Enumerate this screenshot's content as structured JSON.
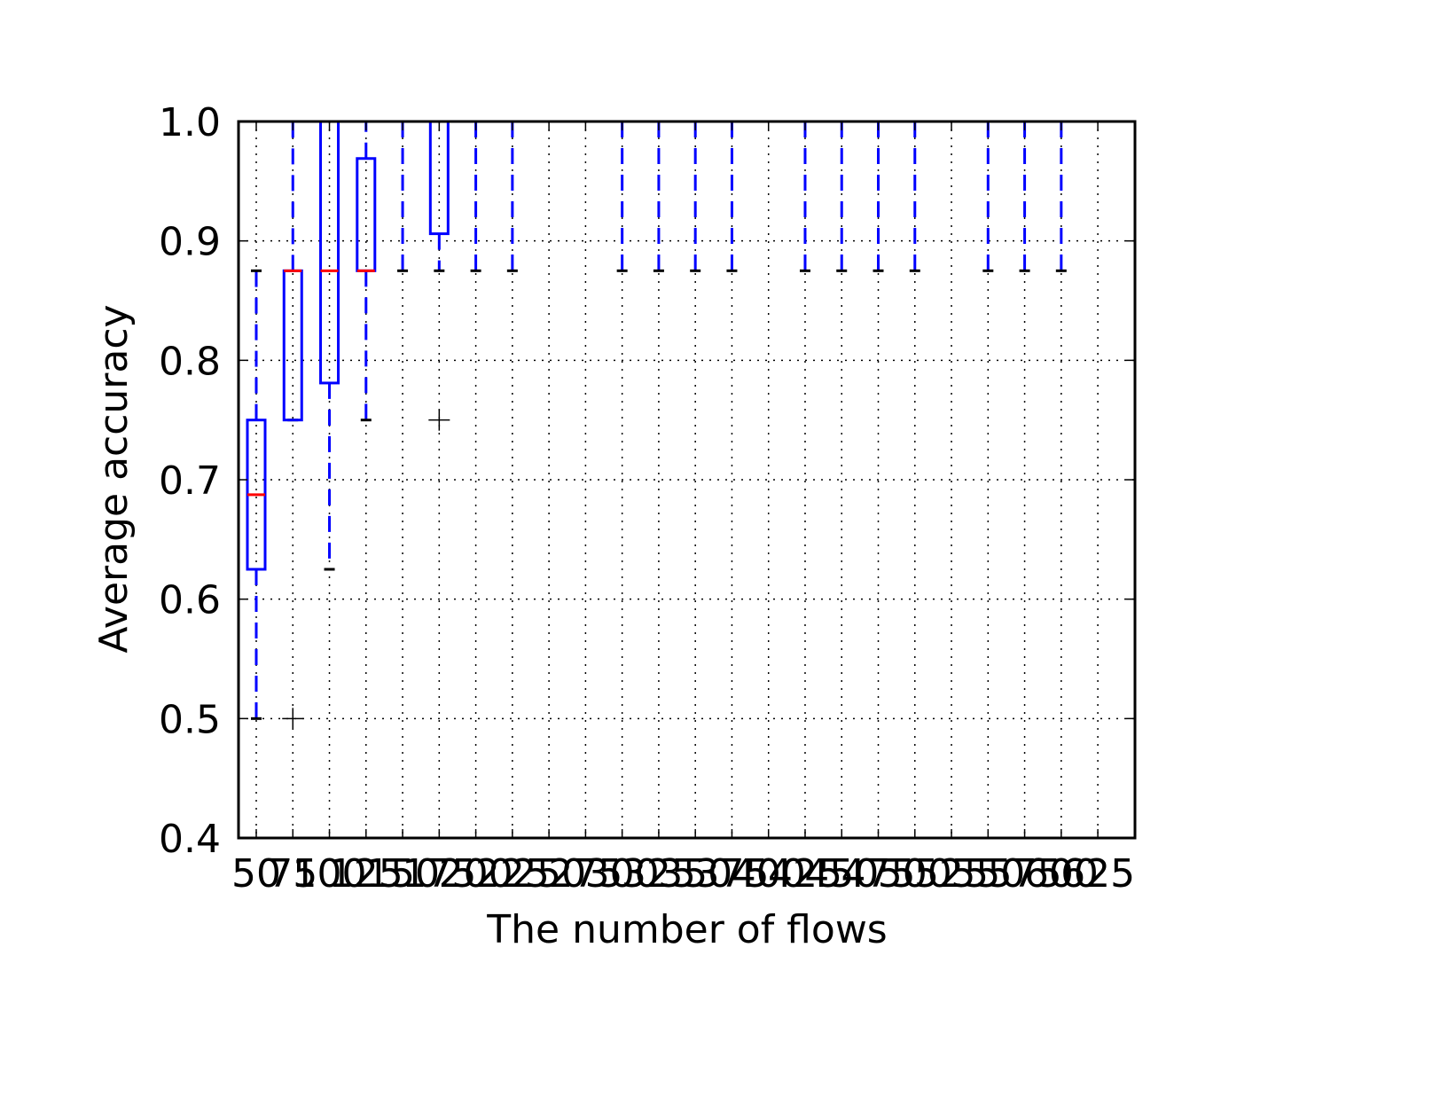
{
  "chart_data": {
    "type": "box",
    "title": "",
    "xlabel": "The number of flows",
    "ylabel": "Average accuracy",
    "ylim": [
      0.4,
      1.0
    ],
    "y_ticks": [
      "0.4",
      "0.5",
      "0.6",
      "0.7",
      "0.8",
      "0.9",
      "1.0"
    ],
    "grid": true,
    "grid_style": "dotted",
    "colors": {
      "box": "#0000ff",
      "median": "#ff0000",
      "caps": "#000000",
      "outlier": "#000000"
    },
    "categories": [
      "50",
      "75",
      "100",
      "125",
      "150",
      "175",
      "200",
      "225",
      "250",
      "275",
      "300",
      "325",
      "350",
      "375",
      "400",
      "425",
      "450",
      "475",
      "500",
      "525",
      "550",
      "575",
      "600",
      "625"
    ],
    "boxes": [
      {
        "x": "50",
        "whislo": 0.5,
        "q1": 0.625,
        "med": 0.6875,
        "q3": 0.75,
        "whishi": 0.875,
        "fliers": []
      },
      {
        "x": "75",
        "whislo": 0.75,
        "q1": 0.75,
        "med": 0.875,
        "q3": 0.875,
        "whishi": 1.0,
        "fliers": [
          0.5
        ]
      },
      {
        "x": "100",
        "whislo": 0.625,
        "q1": 0.781,
        "med": 0.875,
        "q3": 1.0,
        "whishi": 1.0,
        "fliers": []
      },
      {
        "x": "125",
        "whislo": 0.75,
        "q1": 0.875,
        "med": 0.875,
        "q3": 0.969,
        "whishi": 1.0,
        "fliers": []
      },
      {
        "x": "150",
        "whislo": 0.875,
        "q1": 1.0,
        "med": 1.0,
        "q3": 1.0,
        "whishi": 1.0,
        "fliers": []
      },
      {
        "x": "175",
        "whislo": 0.875,
        "q1": 0.906,
        "med": 1.0,
        "q3": 1.0,
        "whishi": 1.0,
        "fliers": [
          0.75
        ]
      },
      {
        "x": "200",
        "whislo": 0.875,
        "q1": 1.0,
        "med": 1.0,
        "q3": 1.0,
        "whishi": 1.0,
        "fliers": []
      },
      {
        "x": "225",
        "whislo": 0.875,
        "q1": 1.0,
        "med": 1.0,
        "q3": 1.0,
        "whishi": 1.0,
        "fliers": []
      },
      {
        "x": "250",
        "whislo": 1.0,
        "q1": 1.0,
        "med": 1.0,
        "q3": 1.0,
        "whishi": 1.0,
        "fliers": []
      },
      {
        "x": "275",
        "whislo": 1.0,
        "q1": 1.0,
        "med": 1.0,
        "q3": 1.0,
        "whishi": 1.0,
        "fliers": []
      },
      {
        "x": "300",
        "whislo": 0.875,
        "q1": 1.0,
        "med": 1.0,
        "q3": 1.0,
        "whishi": 1.0,
        "fliers": []
      },
      {
        "x": "325",
        "whislo": 0.875,
        "q1": 1.0,
        "med": 1.0,
        "q3": 1.0,
        "whishi": 1.0,
        "fliers": []
      },
      {
        "x": "350",
        "whislo": 0.875,
        "q1": 1.0,
        "med": 1.0,
        "q3": 1.0,
        "whishi": 1.0,
        "fliers": []
      },
      {
        "x": "375",
        "whislo": 0.875,
        "q1": 1.0,
        "med": 1.0,
        "q3": 1.0,
        "whishi": 1.0,
        "fliers": []
      },
      {
        "x": "400",
        "whislo": 1.0,
        "q1": 1.0,
        "med": 1.0,
        "q3": 1.0,
        "whishi": 1.0,
        "fliers": []
      },
      {
        "x": "425",
        "whislo": 0.875,
        "q1": 1.0,
        "med": 1.0,
        "q3": 1.0,
        "whishi": 1.0,
        "fliers": []
      },
      {
        "x": "450",
        "whislo": 0.875,
        "q1": 1.0,
        "med": 1.0,
        "q3": 1.0,
        "whishi": 1.0,
        "fliers": []
      },
      {
        "x": "475",
        "whislo": 0.875,
        "q1": 1.0,
        "med": 1.0,
        "q3": 1.0,
        "whishi": 1.0,
        "fliers": []
      },
      {
        "x": "500",
        "whislo": 0.875,
        "q1": 1.0,
        "med": 1.0,
        "q3": 1.0,
        "whishi": 1.0,
        "fliers": []
      },
      {
        "x": "525",
        "whislo": 1.0,
        "q1": 1.0,
        "med": 1.0,
        "q3": 1.0,
        "whishi": 1.0,
        "fliers": []
      },
      {
        "x": "550",
        "whislo": 0.875,
        "q1": 1.0,
        "med": 1.0,
        "q3": 1.0,
        "whishi": 1.0,
        "fliers": []
      },
      {
        "x": "575",
        "whislo": 0.875,
        "q1": 1.0,
        "med": 1.0,
        "q3": 1.0,
        "whishi": 1.0,
        "fliers": []
      },
      {
        "x": "600",
        "whislo": 0.875,
        "q1": 1.0,
        "med": 1.0,
        "q3": 1.0,
        "whishi": 1.0,
        "fliers": []
      },
      {
        "x": "625",
        "whislo": 1.0,
        "q1": 1.0,
        "med": 1.0,
        "q3": 1.0,
        "whishi": 1.0,
        "fliers": []
      }
    ]
  }
}
